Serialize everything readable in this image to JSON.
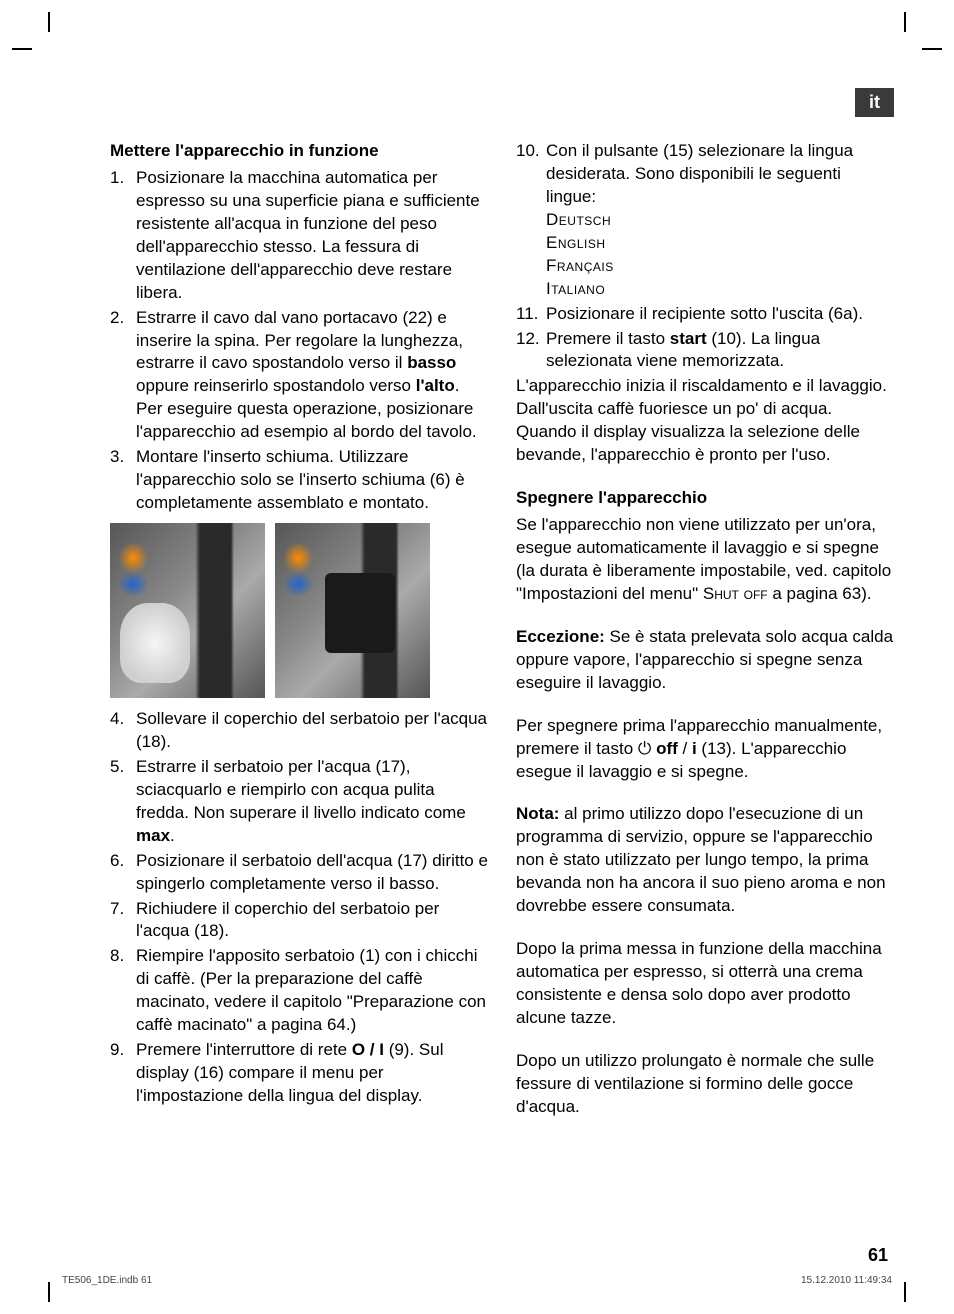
{
  "langTag": "it",
  "leftCol": {
    "heading": "Mettere l'apparecchio in funzione",
    "items1to3": [
      "Posizionare la macchina automatica per espresso su una superficie piana e sufficiente resistente all'acqua in funzione del peso dell'apparecchio stesso. La fessura di ventilazione dell'apparecchio deve restare libera.",
      "Estrarre il cavo dal vano portacavo (22) e inserire la spina. Per regolare la lunghezza, estrarre il cavo spostandolo verso il <b>basso</b> oppure reinserirlo spostandolo verso <b>l'alto</b>. Per eseguire questa operazione, posizionare l'apparecchio ad esempio al bordo del tavolo.",
      "Montare l'inserto schiuma. Utilizzare l'apparecchio solo se l'inserto schiuma (6) è completamente assemblato e montato."
    ],
    "items4to9": [
      "Sollevare il coperchio del serbatoio per l'acqua (18).",
      "Estrarre il serbatoio per l'acqua (17), sciacquarlo e riempirlo con acqua pulita fredda. Non superare il livello indicato come <b>max</b>.",
      "Posizionare il serbatoio dell'acqua (17) diritto e spingerlo completamente verso il basso.",
      "Richiudere il coperchio del serbatoio per l'acqua (18).",
      "Riempire l'apposito serbatoio (1) con i chicchi di caffè. (Per la preparazione del caffè macinato, vedere il capitolo \"Preparazione con caffè macinato\" a pagina 64.)",
      "Premere l'interruttore di rete <b>O / I</b> (9). Sul display (16) compare il menu per l'impostazione della lingua del display."
    ]
  },
  "rightCol": {
    "item10": "Con il pulsante (15) selezionare la lingua desiderata. Sono disponibili le seguenti lingue:",
    "languages": [
      "Deutsch",
      "English",
      "Français",
      "Italiano"
    ],
    "item11": "Posizionare il recipiente sotto l'uscita (6a).",
    "item12": "Premere il tasto <b>start</b> (10). La lingua selezionata viene memorizzata.",
    "afterList": "L'apparecchio inizia il riscaldamento e il lavaggio. Dall'uscita caffè fuoriesce un po' di acqua. Quando il display visualizza la selezione delle bevande, l'apparecchio è pronto per l'uso.",
    "heading2": "Spegnere l'apparecchio",
    "para1": "Se l'apparecchio non viene utilizzato per un'ora, esegue automaticamente il lavaggio e si spegne (la durata è liberamente impostabile, ved. capitolo \"Impostazioni del menu\" <span class=\"small-caps\">Shut off</span> a pagina 63).",
    "para2": "<b>Eccezione:</b> Se è stata prelevata solo acqua calda oppure vapore, l'apparecchio si spegne senza eseguire il lavaggio.",
    "para3": "Per spegnere prima l'apparecchio manualmente, premere il tasto ⏻ <b>off</b> / <b>i</b> (13). L'apparecchio esegue il lavaggio e si spegne.",
    "para4": "<b>Nota:</b> al primo utilizzo dopo l'esecuzione di un programma di servizio, oppure se l'apparecchio non è stato utilizzato per lungo tempo, la prima bevanda non ha ancora il suo pieno aroma e non dovrebbe essere consumata.",
    "para5": "Dopo la prima messa in funzione della macchina automatica per espresso, si otterrà una crema consistente e densa solo dopo aver prodotto alcune tazze.",
    "para6": "Dopo un utilizzo prolungato è normale che sulle fessure di ventilazione si formino delle gocce d'acqua."
  },
  "pageNum": "61",
  "footerLeft": "TE506_1DE.indb   61",
  "footerRight": "15.12.2010   11:49:34"
}
